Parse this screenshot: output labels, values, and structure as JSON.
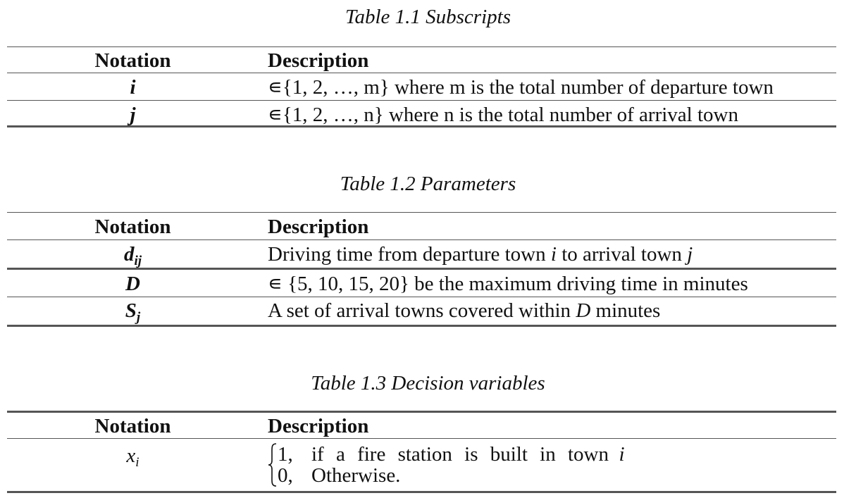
{
  "tables": [
    {
      "caption": "Table 1.1 Subscripts",
      "header": {
        "notation": "Notation",
        "description": "Description"
      },
      "rows": [
        {
          "notation": "i",
          "description": "∊{1, 2, …, m} where m is the total number of departure town"
        },
        {
          "notation": "j",
          "description": "∊{1, 2, …, n} where n is the total number of arrival town"
        }
      ]
    },
    {
      "caption": "Table 1.2 Parameters",
      "header": {
        "notation": "Notation",
        "description": "Description"
      },
      "rows": [
        {
          "notation_base": "d",
          "notation_sub": "ij",
          "description_parts": [
            "Driving time from departure town ",
            "i",
            " to arrival town ",
            "j"
          ]
        },
        {
          "notation": "D",
          "description": "∊ {5, 10, 15, 20} be the maximum driving time in minutes"
        },
        {
          "notation_base": "S",
          "notation_sub": "j",
          "description_parts": [
            "A set of arrival towns covered within ",
            "D",
            " minutes"
          ]
        }
      ]
    },
    {
      "caption": "Table 1.3 Decision variables",
      "header": {
        "notation": "Notation",
        "description": "Description"
      },
      "rows": [
        {
          "notation_base": "x",
          "notation_sub": "i",
          "cases": [
            {
              "value": "1,",
              "text": "if a fire station is built in town",
              "var": "i"
            },
            {
              "value": "0,",
              "text": "Otherwise."
            }
          ]
        }
      ]
    }
  ]
}
